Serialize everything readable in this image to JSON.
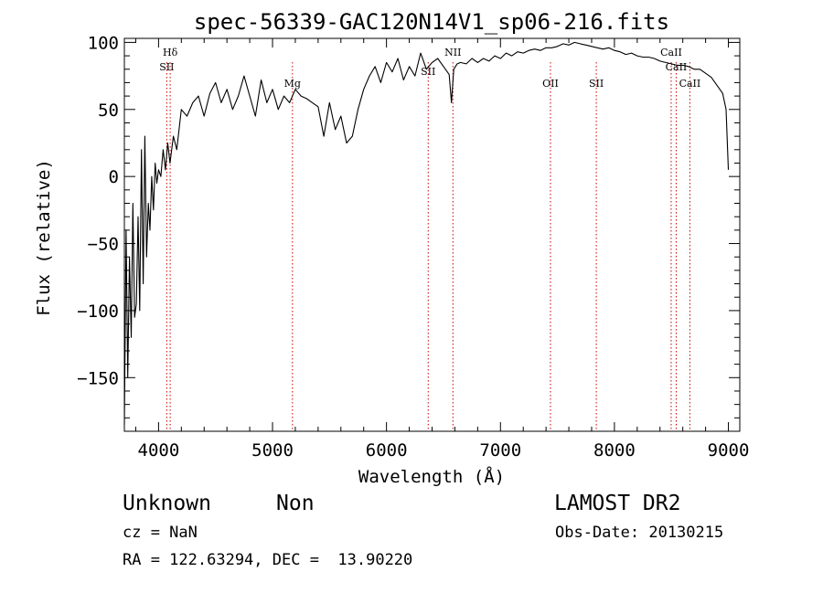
{
  "chart_data": {
    "type": "line",
    "title": "spec-56339-GAC120N14V1_sp06-216.fits",
    "xlabel": "Wavelength (Å)",
    "ylabel": "Flux (relative)",
    "xlim": [
      3700,
      9100
    ],
    "ylim": [
      -190,
      103
    ],
    "xticks": [
      4000,
      5000,
      6000,
      7000,
      8000,
      9000
    ],
    "yticks": [
      100,
      50,
      0,
      -50,
      -100,
      -150
    ],
    "line_color": "#000000",
    "marker_color": "#cc0000",
    "series": [
      {
        "x": [
          3700,
          3715,
          3730,
          3745,
          3760,
          3775,
          3790,
          3805,
          3820,
          3835,
          3850,
          3865,
          3880,
          3895,
          3910,
          3925,
          3940,
          3955,
          3970,
          3985,
          4000,
          4020,
          4040,
          4060,
          4080,
          4100,
          4130,
          4160,
          4200,
          4250,
          4300,
          4350,
          4400,
          4450,
          4500,
          4550,
          4600,
          4650,
          4700,
          4750,
          4800,
          4850,
          4900,
          4950,
          5000,
          5050,
          5100,
          5150,
          5200,
          5250,
          5300,
          5350,
          5400,
          5450,
          5500,
          5550,
          5600,
          5650,
          5700,
          5750,
          5800,
          5850,
          5900,
          5950,
          6000,
          6050,
          6100,
          6150,
          6200,
          6250,
          6300,
          6350,
          6400,
          6450,
          6500,
          6550,
          6570,
          6590,
          6620,
          6650,
          6700,
          6750,
          6800,
          6850,
          6900,
          6950,
          7000,
          7050,
          7100,
          7150,
          7200,
          7250,
          7300,
          7350,
          7400,
          7450,
          7500,
          7550,
          7600,
          7650,
          7700,
          7750,
          7800,
          7850,
          7900,
          7950,
          8000,
          8050,
          8100,
          8150,
          8200,
          8250,
          8300,
          8350,
          8400,
          8450,
          8500,
          8550,
          8600,
          8650,
          8700,
          8750,
          8800,
          8850,
          8900,
          8950,
          8980,
          9000
        ],
        "y": [
          -185,
          -40,
          -150,
          -60,
          -120,
          -20,
          -105,
          -95,
          -30,
          -100,
          20,
          -80,
          30,
          -60,
          -20,
          -40,
          0,
          -25,
          10,
          -5,
          5,
          0,
          20,
          5,
          25,
          10,
          30,
          20,
          50,
          45,
          55,
          60,
          45,
          62,
          70,
          55,
          65,
          50,
          60,
          75,
          60,
          45,
          72,
          55,
          65,
          50,
          60,
          55,
          65,
          60,
          58,
          55,
          52,
          30,
          55,
          35,
          45,
          25,
          30,
          50,
          65,
          75,
          82,
          70,
          85,
          78,
          88,
          72,
          82,
          75,
          92,
          80,
          85,
          88,
          82,
          76,
          55,
          80,
          84,
          85,
          84,
          88,
          85,
          88,
          86,
          90,
          88,
          92,
          90,
          93,
          92,
          94,
          95,
          94,
          96,
          96,
          97,
          99,
          98,
          100,
          99,
          98,
          97,
          96,
          95,
          96,
          94,
          93,
          91,
          92,
          90,
          89,
          89,
          88,
          86,
          85,
          84,
          83,
          83,
          82,
          80,
          80,
          77,
          74,
          68,
          62,
          50,
          5
        ]
      }
    ],
    "line_markers": [
      {
        "name": "Hδ",
        "x": 4102,
        "label_row": 0
      },
      {
        "name": "SII",
        "x": 4072,
        "label_row": 1
      },
      {
        "name": "Mg",
        "x": 5175,
        "label_row": 2
      },
      {
        "name": "NII",
        "x": 6583,
        "label_row": 0
      },
      {
        "name": "SII",
        "x": 6366,
        "label_row": -1
      },
      {
        "name": "OII",
        "x": 7439,
        "label_row": 3
      },
      {
        "name": "SII",
        "x": 7841,
        "label_row": 3
      },
      {
        "name": "CaII",
        "x": 8498,
        "label_row": 0
      },
      {
        "name": "CaII",
        "x": 8542,
        "label_row": 1
      },
      {
        "name": "CaII",
        "x": 8662,
        "label_row": 2
      }
    ]
  },
  "info": {
    "object_class": "Unknown",
    "subclass": "Non",
    "survey": "LAMOST DR2",
    "cz": "cz = NaN",
    "obs_date": "Obs-Date: 20130215",
    "coords": "RA = 122.63294, DEC =  13.90220"
  }
}
